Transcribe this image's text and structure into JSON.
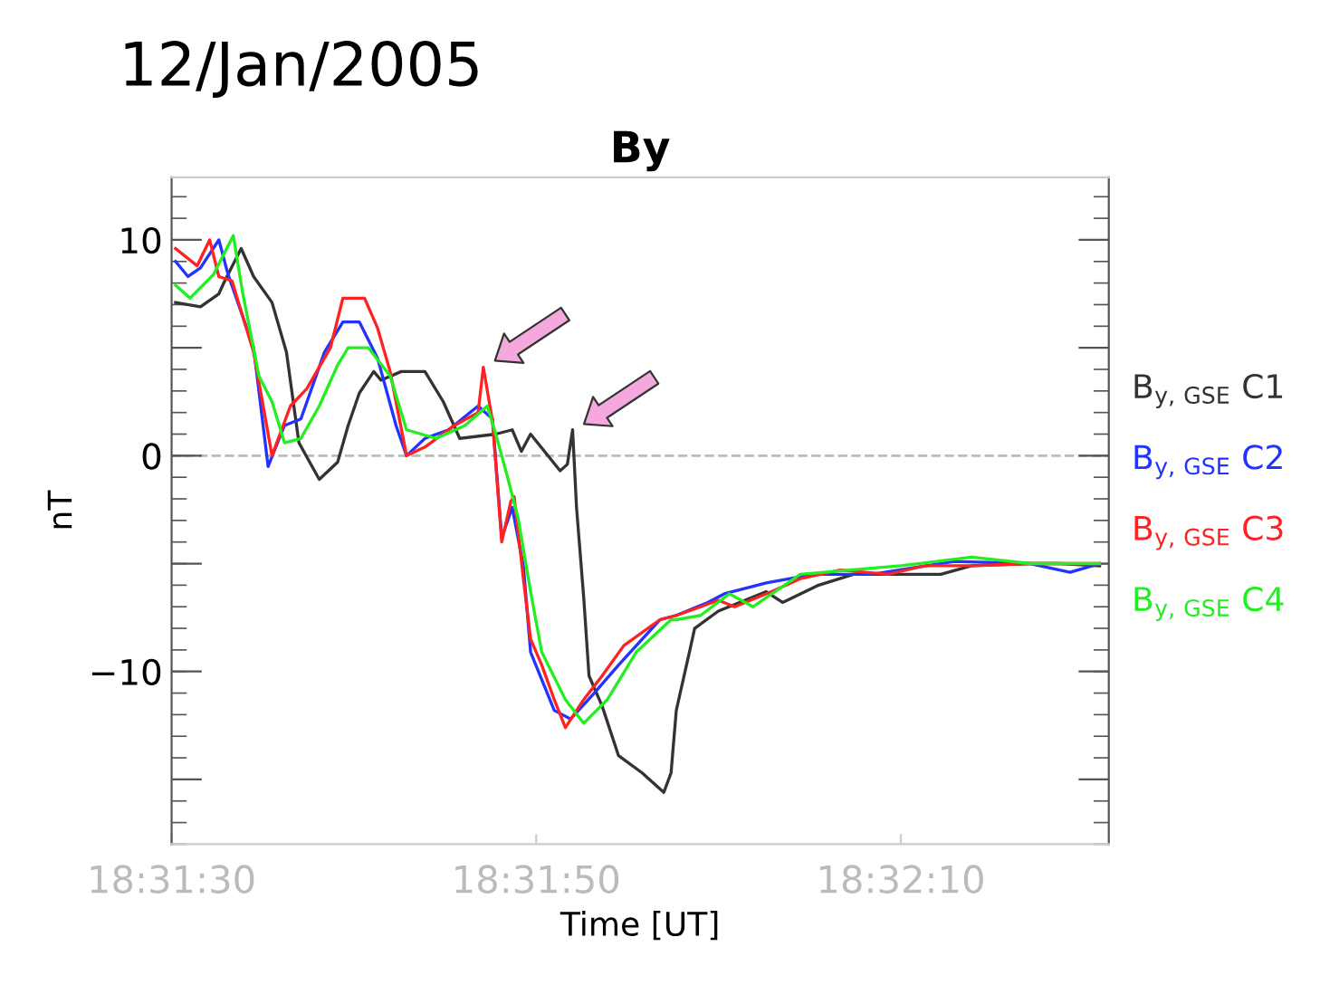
{
  "chart_data": {
    "type": "line",
    "title": "12/Jan/2005",
    "subtitle": "By",
    "xlabel": "Time [UT]",
    "ylabel": "nT",
    "xlim": [
      18.525,
      18.53928
    ],
    "ylim": [
      -18,
      12.9
    ],
    "xticks": [
      {
        "value": 18.525,
        "label": "18:31:30"
      },
      {
        "value": 18.5305556,
        "label": "18:31:50"
      },
      {
        "value": 18.5361111,
        "label": "18:32:10"
      }
    ],
    "yticks": [
      {
        "value": 10,
        "label": "10"
      },
      {
        "value": 5,
        "label": null
      },
      {
        "value": 0,
        "label": "0"
      },
      {
        "value": -5,
        "label": null
      },
      {
        "value": -10,
        "label": "−10"
      },
      {
        "value": -15,
        "label": null
      }
    ],
    "grid": false,
    "legend": "right",
    "line_style": "solid",
    "marker": "none",
    "ref_lines": [
      {
        "axis": "y",
        "value": 0,
        "label": null,
        "color": "#bbbbbb",
        "line_style": "dashed"
      }
    ],
    "series": [
      {
        "name": "B$_{y,GSE}$ C1",
        "color": "#333333",
        "x": [
          18.52506,
          18.52544,
          18.52572,
          18.52581,
          18.52606,
          18.52625,
          18.52653,
          18.52675,
          18.52694,
          18.52725,
          18.52753,
          18.52769,
          18.52786,
          18.52808,
          18.52819,
          18.5285,
          18.52886,
          18.52914,
          18.52939,
          18.52994,
          18.53019,
          18.53033,
          18.53047,
          18.53092,
          18.53103,
          18.53111,
          18.53117,
          18.53128,
          18.53136,
          18.53156,
          18.53181,
          18.53217,
          18.5325,
          18.53261,
          18.53269,
          18.53289,
          18.53297,
          18.53333,
          18.53406,
          18.53431,
          18.53486,
          18.53539,
          18.53628,
          18.53672,
          18.53719,
          18.53808,
          18.53853,
          18.53914
        ],
        "values": [
          7.1,
          6.9,
          7.5,
          8.1,
          9.6,
          8.3,
          7.1,
          4.8,
          0.6,
          -1.1,
          -0.3,
          1.4,
          2.9,
          3.9,
          3.5,
          3.9,
          3.9,
          2.5,
          0.8,
          1.0,
          1.2,
          0.2,
          1.0,
          -0.7,
          -0.4,
          1.2,
          -2.4,
          -6.6,
          -10.2,
          -11.6,
          -13.9,
          -14.7,
          -15.6,
          -14.7,
          -11.8,
          -9.1,
          -8.0,
          -7.2,
          -6.3,
          -6.8,
          -6.0,
          -5.5,
          -5.5,
          -5.5,
          -5.1,
          -5.0,
          -5.0,
          -5.1
        ]
      },
      {
        "name": "B$_{y,GSE}$ C2",
        "color": "#2233ff",
        "x": [
          18.52506,
          18.52525,
          18.52544,
          18.52572,
          18.52586,
          18.52625,
          18.52647,
          18.52672,
          18.52697,
          18.52733,
          18.52761,
          18.52786,
          18.52814,
          18.52842,
          18.52858,
          18.52886,
          18.52922,
          18.52967,
          18.52989,
          18.53003,
          18.53019,
          18.53036,
          18.53047,
          18.53083,
          18.53108,
          18.53144,
          18.53181,
          18.53244,
          18.53269,
          18.53317,
          18.53342,
          18.53406,
          18.53478,
          18.53567,
          18.53692,
          18.53808,
          18.53869,
          18.53914
        ],
        "values": [
          9.0,
          8.3,
          8.7,
          10.0,
          8.4,
          5.0,
          -0.5,
          1.4,
          1.7,
          4.8,
          6.2,
          6.2,
          4.5,
          1.4,
          0,
          0.8,
          1.2,
          2.3,
          1.7,
          -3.8,
          -2.4,
          -5.1,
          -9.1,
          -11.8,
          -12.2,
          -11.0,
          -9.7,
          -7.6,
          -7.4,
          -6.8,
          -6.4,
          -5.9,
          -5.5,
          -5.5,
          -4.9,
          -5.0,
          -5.4,
          -5.0
        ]
      },
      {
        "name": "B$_{y,GSE}$ C3",
        "color": "#ff2222",
        "x": [
          18.52506,
          18.52539,
          18.52558,
          18.52572,
          18.52592,
          18.52625,
          18.52653,
          18.52681,
          18.52706,
          18.52742,
          18.52761,
          18.52794,
          18.52814,
          18.52833,
          18.52858,
          18.52886,
          18.52931,
          18.52967,
          18.52975,
          18.52989,
          18.53003,
          18.53017,
          18.53022,
          18.53036,
          18.53047,
          18.53064,
          18.53083,
          18.531,
          18.53128,
          18.53156,
          18.53189,
          18.53244,
          18.53269,
          18.53306,
          18.53333,
          18.53358,
          18.53414,
          18.53458,
          18.53519,
          18.53592,
          18.53647,
          18.53719,
          18.53808,
          18.53914
        ],
        "values": [
          9.6,
          8.8,
          10.0,
          8.3,
          8.1,
          4.8,
          0,
          2.3,
          3.1,
          5.0,
          7.3,
          7.3,
          5.9,
          3.9,
          0,
          0.4,
          1.4,
          2.0,
          4.1,
          1.6,
          -4.0,
          -2.1,
          -1.9,
          -5.7,
          -8.5,
          -9.7,
          -11.3,
          -12.6,
          -11.3,
          -10.2,
          -8.8,
          -7.6,
          -7.4,
          -7.0,
          -6.7,
          -7.0,
          -6.3,
          -5.7,
          -5.3,
          -5.5,
          -5.1,
          -5.1,
          -5.0,
          -5.0
        ]
      },
      {
        "name": "B$_{y,GSE}$ C4",
        "color": "#22ee22",
        "x": [
          18.52506,
          18.52528,
          18.52564,
          18.52594,
          18.52608,
          18.52633,
          18.52653,
          18.52672,
          18.52697,
          18.52725,
          18.52753,
          18.52769,
          18.528,
          18.52833,
          18.52858,
          18.52903,
          18.52947,
          18.52981,
          18.52994,
          18.53011,
          18.53028,
          18.53047,
          18.53064,
          18.531,
          18.53128,
          18.53164,
          18.53208,
          18.53261,
          18.53269,
          18.53306,
          18.5335,
          18.53386,
          18.53458,
          18.53611,
          18.53719,
          18.53808,
          18.53914
        ],
        "values": [
          7.9,
          7.3,
          8.4,
          10.2,
          7.6,
          3.7,
          2.5,
          0.6,
          0.8,
          2.3,
          4.2,
          5.0,
          5.0,
          3.7,
          1.2,
          0.8,
          1.4,
          2.3,
          1.0,
          -0.9,
          -2.9,
          -6.3,
          -9.1,
          -11.3,
          -12.4,
          -11.3,
          -9.1,
          -7.6,
          -7.6,
          -7.4,
          -6.4,
          -7.0,
          -5.5,
          -5.1,
          -4.7,
          -5.0,
          -5.0
        ]
      }
    ]
  }
}
